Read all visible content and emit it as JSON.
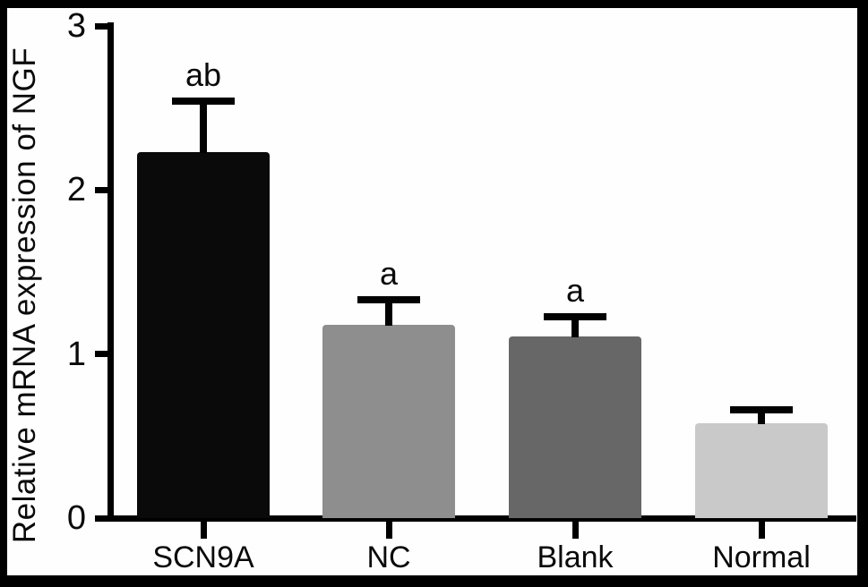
{
  "figure": {
    "background": "#fefefe",
    "frame_color": "#000000",
    "axis_color": "#000000",
    "text_color": "#0a0a0a"
  },
  "chart_data": {
    "type": "bar",
    "title": "",
    "xlabel": "",
    "ylabel": "Relative mRNA expression of NGF",
    "categories": [
      "SCN9A",
      "NC",
      "Blank",
      "Normal"
    ],
    "values": [
      2.23,
      1.18,
      1.11,
      0.58
    ],
    "errors": [
      0.31,
      0.15,
      0.12,
      0.08
    ],
    "error_style": "cap-up",
    "annotations": [
      "ab",
      "a",
      "a",
      ""
    ],
    "bar_colors": [
      "#0a0a0a",
      "#8e8e8e",
      "#676767",
      "#c9c9c9"
    ],
    "ylim": [
      0,
      3
    ],
    "yticks": [
      "0",
      "1",
      "2",
      "3"
    ],
    "grid": false,
    "legend": null
  }
}
